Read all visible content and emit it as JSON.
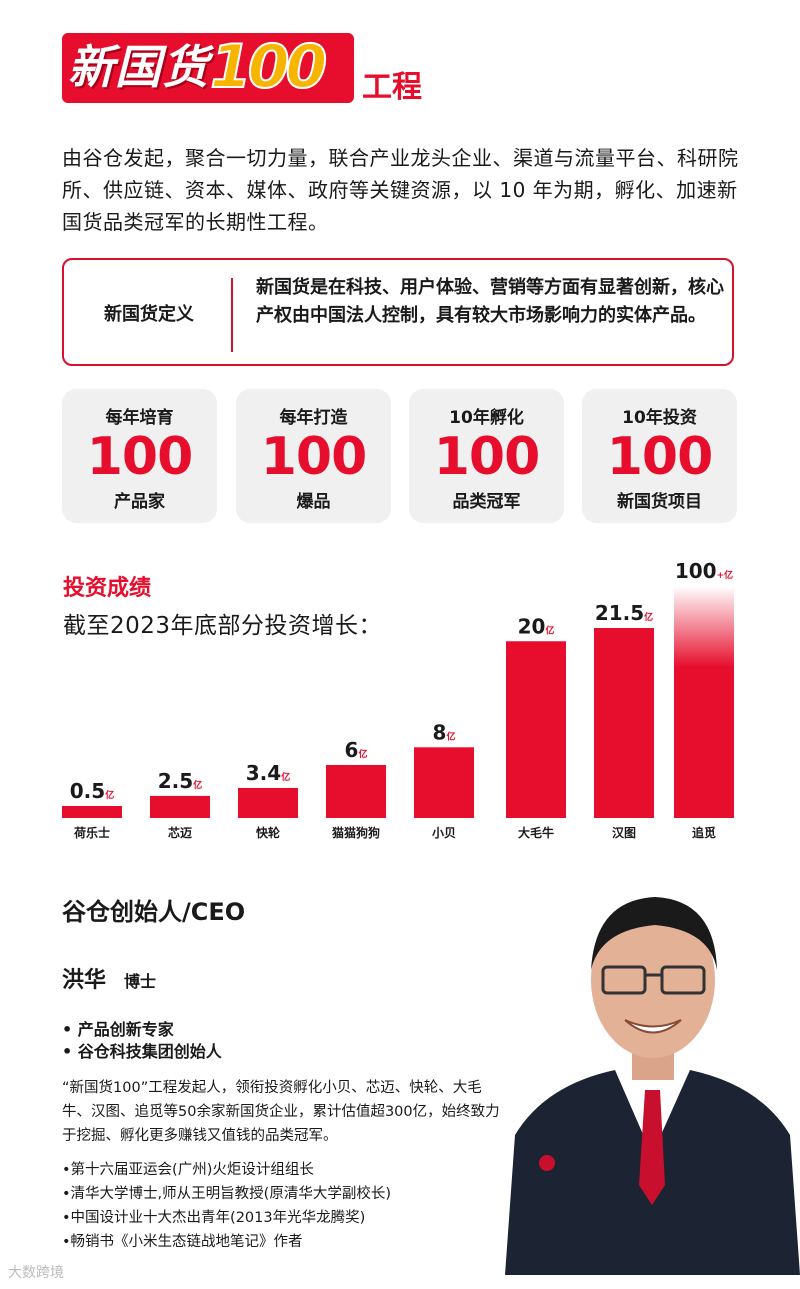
{
  "header": {
    "logo_text": "新国货",
    "logo_number": "100",
    "suffix": "工程"
  },
  "intro": "由谷仓发起，聚合一切力量，联合产业龙头企业、渠道与流量平台、科研院所、供应链、资本、媒体、政府等关键资源，以 10 年为期，孵化、加速新国货品类冠军的长期性工程。",
  "definition": {
    "label": "新国货定义",
    "text": "新国货是在科技、用户体验、营销等方面有显著创新，核心产权由中国法人控制，具有较大市场影响力的实体产品。"
  },
  "stats": [
    {
      "top": "每年培育",
      "num": "100",
      "bottom": "产品家"
    },
    {
      "top": "每年打造",
      "num": "100",
      "bottom": "爆品"
    },
    {
      "top": "10年孵化",
      "num": "100",
      "bottom": "品类冠军"
    },
    {
      "top": "10年投资",
      "num": "100",
      "bottom": "新国货项目"
    }
  ],
  "investment": {
    "title": "投资成绩",
    "subtitle": "截至2023年底部分投资增长："
  },
  "chart_data": {
    "type": "bar",
    "categories": [
      "荷乐士",
      "芯迈",
      "快轮",
      "猫猫狗狗",
      "小贝",
      "大毛牛",
      "汉图",
      "追觅"
    ],
    "values": [
      0.5,
      2.5,
      3.4,
      6,
      8,
      20,
      21.5,
      100
    ],
    "value_labels": [
      "0.5",
      "2.5",
      "3.4",
      "6",
      "8",
      "20",
      "21.5",
      "100"
    ],
    "unit": "亿",
    "last_suffix": "+亿",
    "bar_color": "#e60e2c",
    "grid": false
  },
  "founder": {
    "title": "谷仓创始人/CEO",
    "name": "洪华",
    "honorific": "博士",
    "roles": [
      "•  产品创新专家",
      "•  谷仓科技集团创始人"
    ],
    "description": "“新国货100”工程发起人，领衔投资孵化小贝、芯迈、快轮、大毛牛、汉图、追觅等50余家新国货企业，累计估值超300亿，始终致力于挖掘、孵化更多赚钱又值钱的品类冠军。",
    "honors": [
      "•第十六届亚运会(广州)火炬设计组组长",
      "•清华大学博士,师从王明旨教授(原清华大学副校长)",
      "•中国设计业十大杰出青年(2013年光华龙腾奖)",
      "•畅销书《小米生态链战地笔记》作者"
    ]
  },
  "watermark": "大数跨境",
  "colors": {
    "accent": "#e60e2c",
    "card_bg": "#f0f0f0"
  }
}
